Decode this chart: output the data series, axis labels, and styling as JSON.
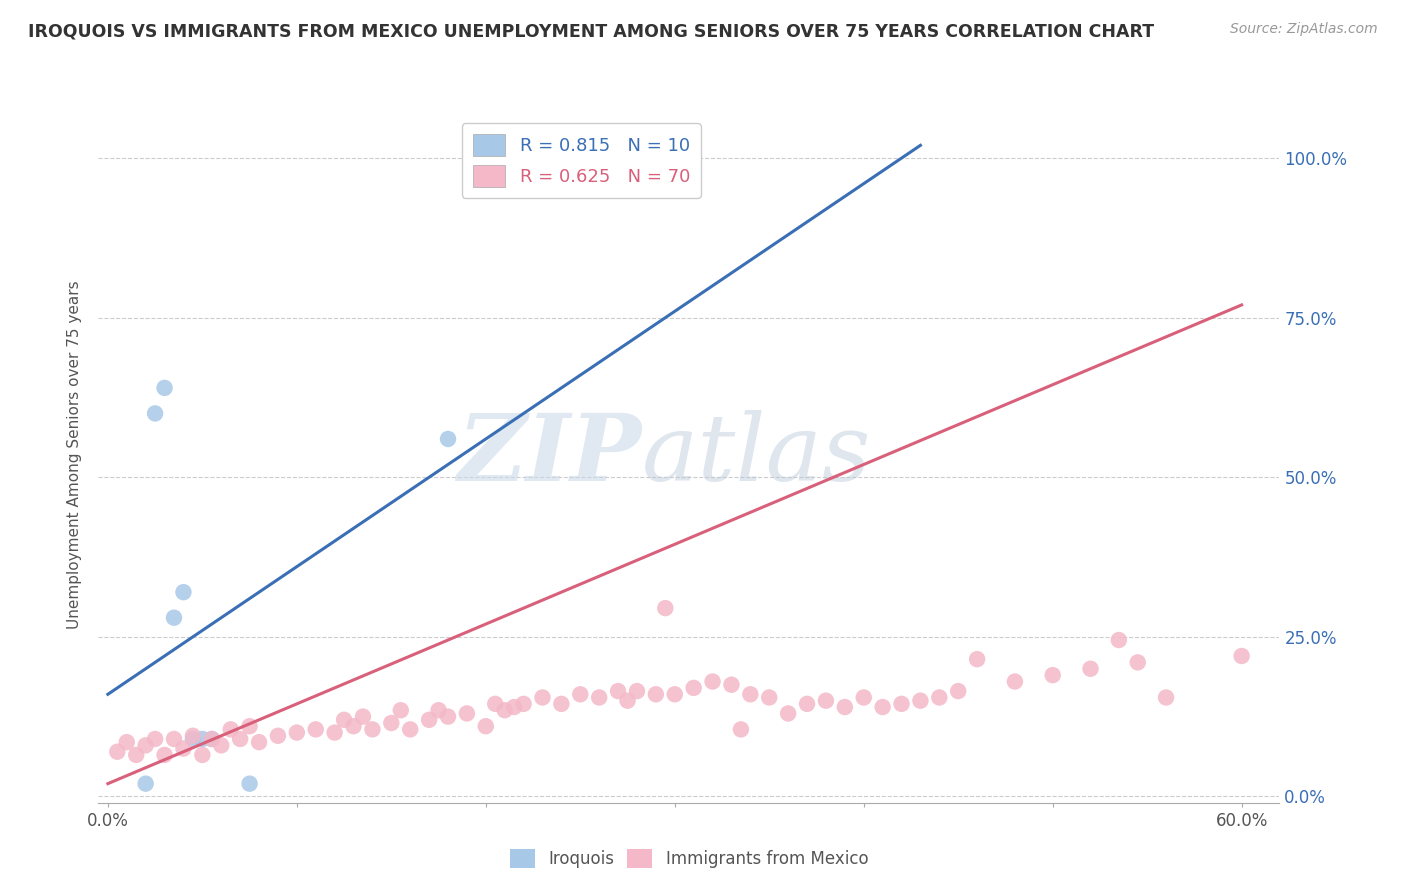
{
  "title": "IROQUOIS VS IMMIGRANTS FROM MEXICO UNEMPLOYMENT AMONG SENIORS OVER 75 YEARS CORRELATION CHART",
  "source": "Source: ZipAtlas.com",
  "ylabel": "Unemployment Among Seniors over 75 years",
  "xlim": [
    -0.005,
    0.62
  ],
  "ylim": [
    -0.01,
    1.08
  ],
  "xticks": [
    0.0,
    0.1,
    0.2,
    0.3,
    0.4,
    0.5,
    0.6
  ],
  "xticklabels": [
    "0.0%",
    "",
    "",
    "",
    "",
    "",
    "60.0%"
  ],
  "yticks": [
    0.0,
    0.25,
    0.5,
    0.75,
    1.0
  ],
  "yticklabels_right": [
    "0.0%",
    "25.0%",
    "50.0%",
    "75.0%",
    "100.0%"
  ],
  "blue_color": "#a8c8e8",
  "pink_color": "#f4b8c8",
  "blue_line_color": "#3a6fb5",
  "pink_line_color": "#d9607a",
  "legend_blue_label": "R = 0.815   N = 10",
  "legend_pink_label": "R = 0.625   N = 70",
  "legend_blue_color": "#3a6fb5",
  "legend_pink_color": "#d9607a",
  "legend_iroquois": "Iroquois",
  "legend_immigrants": "Immigrants from Mexico",
  "watermark_zip": "ZIP",
  "watermark_atlas": "atlas",
  "background_color": "#ffffff",
  "iroquois_x": [
    0.02,
    0.025,
    0.03,
    0.035,
    0.04,
    0.045,
    0.05,
    0.055,
    0.075,
    0.18
  ],
  "iroquois_y": [
    0.02,
    0.6,
    0.64,
    0.28,
    0.32,
    0.09,
    0.09,
    0.09,
    0.02,
    0.56
  ],
  "immigrants_x": [
    0.005,
    0.01,
    0.015,
    0.02,
    0.025,
    0.03,
    0.035,
    0.04,
    0.045,
    0.05,
    0.055,
    0.06,
    0.065,
    0.07,
    0.075,
    0.08,
    0.09,
    0.1,
    0.11,
    0.12,
    0.125,
    0.13,
    0.135,
    0.14,
    0.15,
    0.155,
    0.16,
    0.17,
    0.175,
    0.18,
    0.19,
    0.2,
    0.205,
    0.21,
    0.215,
    0.22,
    0.23,
    0.24,
    0.25,
    0.26,
    0.27,
    0.275,
    0.28,
    0.29,
    0.295,
    0.3,
    0.31,
    0.32,
    0.33,
    0.335,
    0.34,
    0.35,
    0.36,
    0.37,
    0.38,
    0.39,
    0.4,
    0.41,
    0.42,
    0.43,
    0.44,
    0.45,
    0.46,
    0.48,
    0.5,
    0.52,
    0.535,
    0.545,
    0.56,
    0.6
  ],
  "immigrants_y": [
    0.07,
    0.085,
    0.065,
    0.08,
    0.09,
    0.065,
    0.09,
    0.075,
    0.095,
    0.065,
    0.09,
    0.08,
    0.105,
    0.09,
    0.11,
    0.085,
    0.095,
    0.1,
    0.105,
    0.1,
    0.12,
    0.11,
    0.125,
    0.105,
    0.115,
    0.135,
    0.105,
    0.12,
    0.135,
    0.125,
    0.13,
    0.11,
    0.145,
    0.135,
    0.14,
    0.145,
    0.155,
    0.145,
    0.16,
    0.155,
    0.165,
    0.15,
    0.165,
    0.16,
    0.295,
    0.16,
    0.17,
    0.18,
    0.175,
    0.105,
    0.16,
    0.155,
    0.13,
    0.145,
    0.15,
    0.14,
    0.155,
    0.14,
    0.145,
    0.15,
    0.155,
    0.165,
    0.215,
    0.18,
    0.19,
    0.2,
    0.245,
    0.21,
    0.155,
    0.22
  ],
  "blue_trend_x": [
    0.0,
    0.43
  ],
  "blue_trend_y": [
    0.16,
    1.02
  ],
  "pink_trend_x": [
    0.0,
    0.6
  ],
  "pink_trend_y": [
    0.02,
    0.77
  ]
}
